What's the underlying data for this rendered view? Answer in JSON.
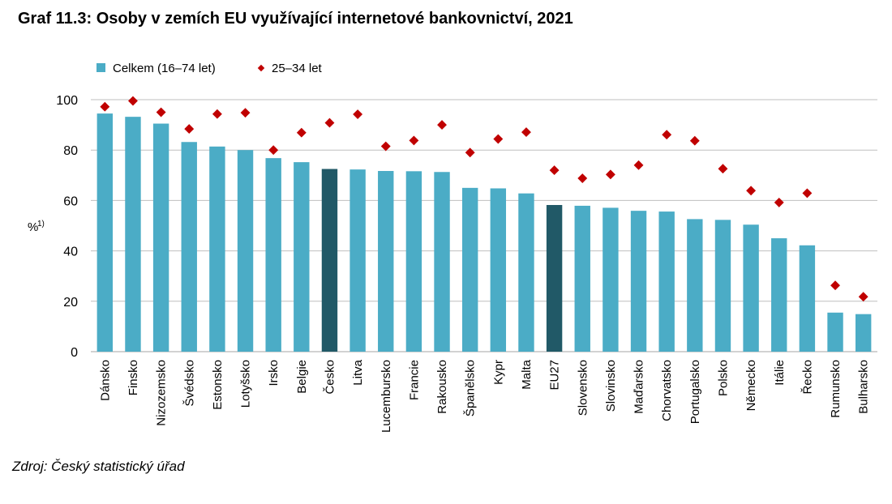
{
  "title": "Graf 11.3: Osoby v zemích EU využívající internetové bankovnictví, 2021",
  "source": "Zdroj: Český statistický úřad",
  "colors": {
    "bar": "#4bacc6",
    "bar_highlight": "#215967",
    "marker": "#c00000",
    "grid": "#bfbfbf"
  },
  "chart_data": {
    "type": "bar",
    "ylabel": "%",
    "ylabel_sup": "1)",
    "ylim": [
      0,
      100
    ],
    "yticks": [
      0,
      20,
      40,
      60,
      80,
      100
    ],
    "grid": true,
    "legend_position": "top-left",
    "categories": [
      "Dánsko",
      "Finsko",
      "Nizozemsko",
      "Švédsko",
      "Estonsko",
      "Lotyšsko",
      "Irsko",
      "Belgie",
      "Česko",
      "Litva",
      "Lucembursko",
      "Francie",
      "Rakousko",
      "Španělsko",
      "Kypr",
      "Malta",
      "EU27",
      "Slovensko",
      "Slovinsko",
      "Maďarsko",
      "Chorvatsko",
      "Portugalsko",
      "Polsko",
      "Německo",
      "Itálie",
      "Řecko",
      "Rumunsko",
      "Bulharsko"
    ],
    "highlighted": [
      "Česko",
      "EU27"
    ],
    "series": [
      {
        "name": "Celkem (16–74 let)",
        "kind": "bar",
        "values": [
          94.5,
          93.2,
          90.5,
          83.2,
          81.4,
          80.0,
          76.8,
          75.2,
          72.5,
          72.3,
          71.7,
          71.6,
          71.3,
          65.0,
          64.8,
          62.8,
          58.2,
          57.9,
          57.1,
          55.9,
          55.6,
          52.6,
          52.3,
          50.4,
          45.0,
          42.2,
          15.5,
          14.9
        ]
      },
      {
        "name": "25–34 let",
        "kind": "marker",
        "values": [
          97.2,
          99.5,
          95.0,
          88.4,
          94.3,
          94.8,
          80.0,
          86.9,
          90.8,
          94.2,
          81.5,
          83.8,
          90.0,
          79.0,
          84.4,
          87.1,
          72.0,
          68.8,
          70.3,
          74.0,
          86.1,
          83.7,
          72.6,
          63.9,
          59.2,
          62.9,
          26.3,
          21.8
        ]
      }
    ]
  }
}
